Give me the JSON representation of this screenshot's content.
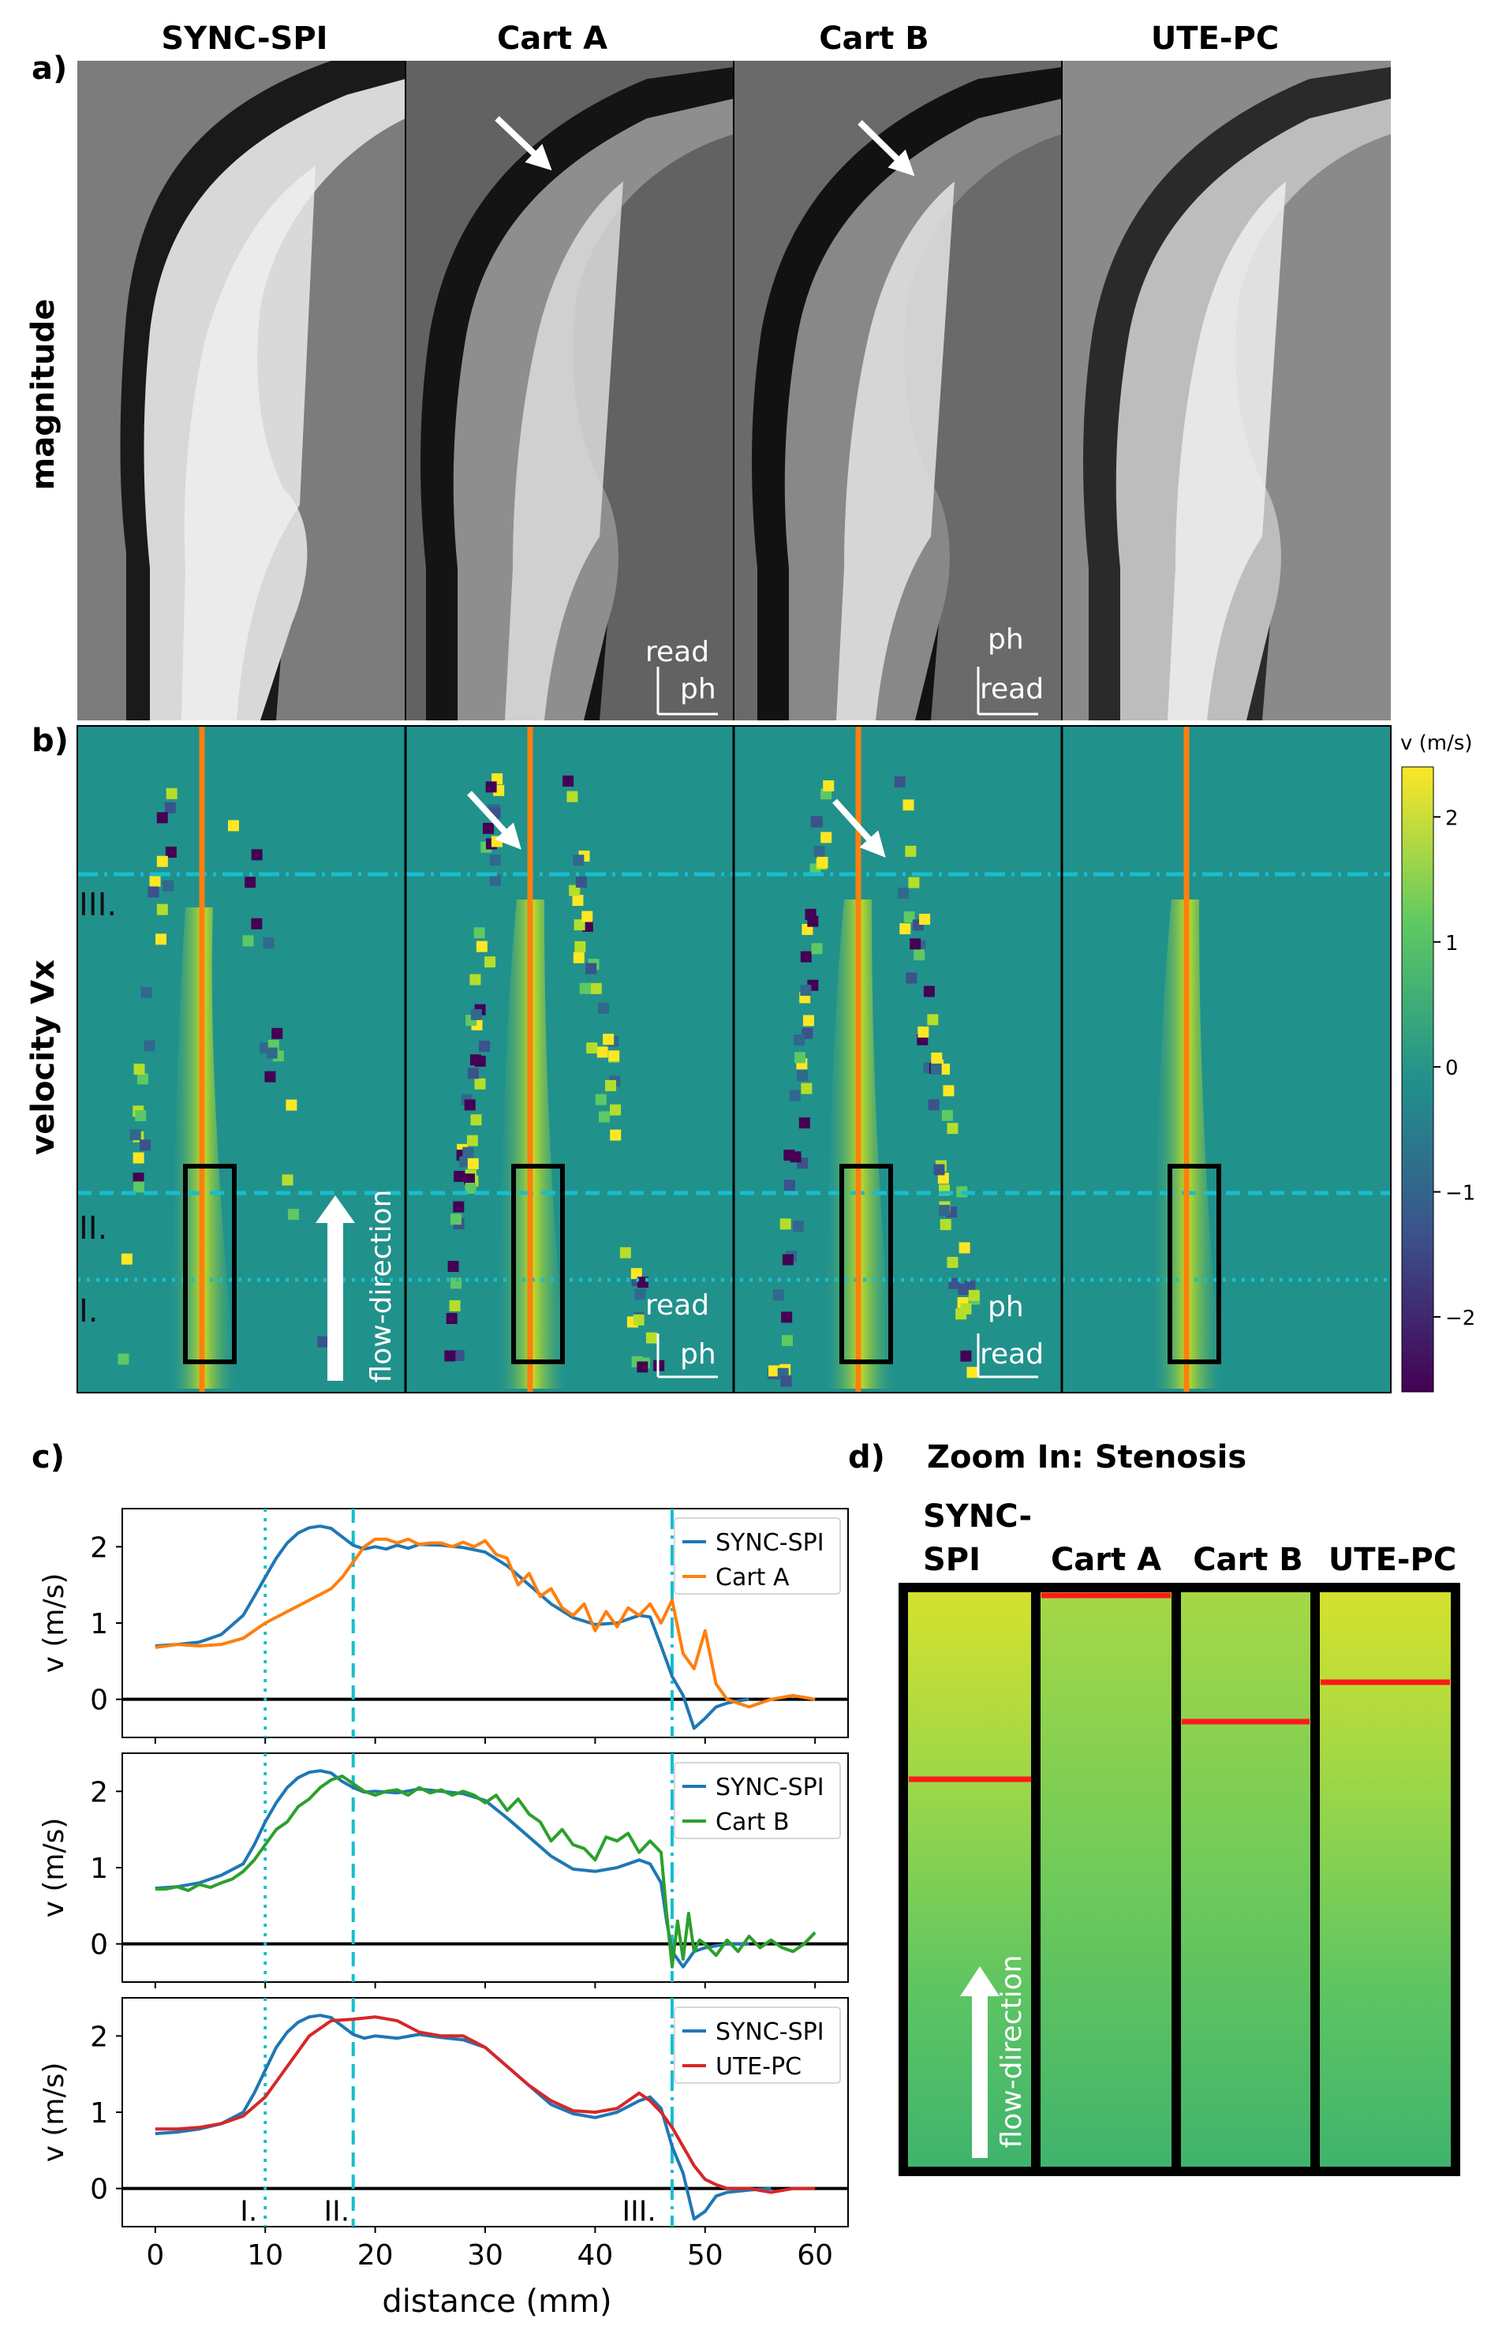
{
  "panel_a": {
    "label": "a)",
    "row_label": "magnitude",
    "columns": [
      "SYNC-SPI",
      "Cart A",
      "Cart B",
      "UTE-PC"
    ],
    "axes_a": {
      "up": "read",
      "right": "ph"
    },
    "axes_b": {
      "up": "ph",
      "right": "read"
    }
  },
  "panel_b": {
    "label": "b)",
    "row_label": "velocity Vx",
    "region_labels": [
      "III.",
      "II.",
      "I."
    ],
    "flow_label": "flow-direction",
    "axes_a": {
      "up": "read",
      "right": "ph"
    },
    "axes_b": {
      "up": "ph",
      "right": "read"
    },
    "colorbar": {
      "title": "v (m/s)",
      "ticks": [
        "2",
        "1",
        "0",
        "−1",
        "−2"
      ],
      "range": [
        -2.6,
        2.4
      ],
      "colors": [
        "#440154",
        "#3b528b",
        "#21918c",
        "#5ec962",
        "#fde725"
      ]
    }
  },
  "panel_c": {
    "label": "c)",
    "ylabel": "v (m/s)",
    "xlabel": "distance (mm)",
    "x_ticks": [
      "0",
      "10",
      "20",
      "30",
      "40",
      "50",
      "60"
    ],
    "y_ticks": [
      "0",
      "1",
      "2"
    ],
    "region_labels": [
      "I.",
      "II.",
      "III."
    ],
    "legends": [
      [
        "SYNC-SPI",
        "Cart A"
      ],
      [
        "SYNC-SPI",
        "Cart B"
      ],
      [
        "SYNC-SPI",
        "UTE-PC"
      ]
    ],
    "colors": {
      "sync": "#1f77b4",
      "carta": "#ff7f0e",
      "cartb": "#2ca02c",
      "ute": "#d62728",
      "markers": "#17becf"
    }
  },
  "panel_d": {
    "label": "d)",
    "title": "Zoom In: Stenosis",
    "columns": [
      "SYNC-SPI",
      "Cart A",
      "Cart B",
      "UTE-PC"
    ],
    "flow_label": "flow-direction"
  },
  "chart_data": {
    "type": "line",
    "xlabel": "distance (mm)",
    "ylabel": "v (m/s)",
    "xlim": [
      -3,
      63
    ],
    "ylim": [
      -0.5,
      2.5
    ],
    "vertical_markers": [
      {
        "label": "I.",
        "x": 10,
        "style": "dotted"
      },
      {
        "label": "II.",
        "x": 18,
        "style": "dashed"
      },
      {
        "label": "III.",
        "x": 47,
        "style": "dash-dot"
      }
    ],
    "subplots": [
      {
        "series": [
          {
            "name": "SYNC-SPI",
            "x": [
              0,
              2,
              4,
              6,
              8,
              9,
              10,
              11,
              12,
              13,
              14,
              15,
              16,
              17,
              18,
              19,
              20,
              21,
              22,
              23,
              24,
              26,
              28,
              30,
              32,
              34,
              36,
              38,
              40,
              42,
              43,
              44,
              45,
              46,
              46.5,
              47,
              48,
              49,
              50,
              51,
              52,
              53,
              54
            ],
            "y": [
              0.7,
              0.72,
              0.75,
              0.85,
              1.1,
              1.35,
              1.6,
              1.85,
              2.05,
              2.18,
              2.25,
              2.27,
              2.24,
              2.13,
              2.02,
              1.97,
              2.0,
              1.97,
              2.02,
              1.98,
              2.03,
              2.02,
              1.99,
              1.93,
              1.75,
              1.5,
              1.25,
              1.07,
              0.98,
              1.0,
              1.05,
              1.1,
              1.08,
              0.7,
              0.5,
              0.3,
              0.05,
              -0.38,
              -0.25,
              -0.1,
              -0.05,
              -0.02,
              0.0
            ]
          },
          {
            "name": "Cart A",
            "x": [
              0,
              2,
              4,
              6,
              8,
              10,
              12,
              14,
              16,
              17,
              18,
              19,
              20,
              21,
              22,
              23,
              24,
              25,
              26,
              27,
              28,
              29,
              30,
              31,
              32,
              33,
              34,
              35,
              36,
              37,
              38,
              39,
              40,
              41,
              42,
              43,
              44,
              45,
              46,
              47,
              48,
              49,
              50,
              51,
              52,
              54,
              56,
              58,
              60
            ],
            "y": [
              0.68,
              0.72,
              0.7,
              0.72,
              0.8,
              1.0,
              1.15,
              1.3,
              1.45,
              1.6,
              1.8,
              2.0,
              2.1,
              2.1,
              2.05,
              2.1,
              2.03,
              2.05,
              2.05,
              2.0,
              2.06,
              2.0,
              2.08,
              1.9,
              1.85,
              1.5,
              1.65,
              1.35,
              1.45,
              1.2,
              1.1,
              1.25,
              0.9,
              1.15,
              0.95,
              1.2,
              1.1,
              1.25,
              1.0,
              1.3,
              0.6,
              0.4,
              0.9,
              0.2,
              0.0,
              -0.1,
              0.0,
              0.05,
              0.0
            ]
          }
        ]
      },
      {
        "series": [
          {
            "name": "SYNC-SPI",
            "x": [
              0,
              2,
              4,
              6,
              8,
              9,
              10,
              11,
              12,
              13,
              14,
              15,
              16,
              17,
              18,
              19,
              20,
              22,
              24,
              26,
              28,
              30,
              32,
              34,
              36,
              38,
              40,
              42,
              44,
              45,
              46,
              46.5,
              47,
              48,
              49,
              50,
              52,
              54
            ],
            "y": [
              0.73,
              0.75,
              0.8,
              0.9,
              1.05,
              1.3,
              1.6,
              1.85,
              2.05,
              2.18,
              2.25,
              2.27,
              2.24,
              2.13,
              2.05,
              1.99,
              2.0,
              1.98,
              2.03,
              2.0,
              1.97,
              1.88,
              1.65,
              1.4,
              1.15,
              0.98,
              0.95,
              1.0,
              1.1,
              1.05,
              0.8,
              0.3,
              -0.1,
              -0.3,
              -0.1,
              -0.05,
              0.0,
              0.0
            ]
          },
          {
            "name": "Cart B",
            "x": [
              0,
              1,
              2,
              3,
              4,
              5,
              6,
              7,
              8,
              9,
              10,
              11,
              12,
              13,
              14,
              15,
              16,
              17,
              18,
              19,
              20,
              21,
              22,
              23,
              24,
              25,
              26,
              27,
              28,
              29,
              30,
              31,
              32,
              33,
              34,
              35,
              36,
              37,
              38,
              39,
              40,
              41,
              42,
              43,
              44,
              45,
              46,
              46.5,
              47,
              47.5,
              48,
              48.5,
              49,
              49.5,
              50,
              51,
              52,
              53,
              54,
              55,
              56,
              57,
              58,
              59,
              60
            ],
            "y": [
              0.72,
              0.72,
              0.75,
              0.7,
              0.78,
              0.74,
              0.8,
              0.85,
              0.95,
              1.1,
              1.3,
              1.5,
              1.6,
              1.8,
              1.9,
              2.05,
              2.15,
              2.2,
              2.1,
              2.0,
              1.95,
              2.0,
              2.02,
              1.95,
              2.05,
              1.98,
              2.02,
              1.95,
              2.0,
              1.95,
              1.85,
              1.95,
              1.75,
              1.9,
              1.7,
              1.6,
              1.35,
              1.5,
              1.3,
              1.25,
              1.1,
              1.4,
              1.35,
              1.45,
              1.2,
              1.35,
              1.2,
              0.4,
              -0.3,
              0.3,
              -0.2,
              0.4,
              -0.1,
              0.05,
              0.0,
              -0.15,
              0.05,
              -0.1,
              0.1,
              -0.05,
              0.05,
              -0.05,
              -0.1,
              0.0,
              0.15
            ]
          }
        ]
      },
      {
        "series": [
          {
            "name": "SYNC-SPI",
            "x": [
              0,
              2,
              4,
              6,
              8,
              9,
              10,
              11,
              12,
              13,
              14,
              15,
              16,
              17,
              18,
              19,
              20,
              22,
              24,
              26,
              28,
              30,
              32,
              34,
              36,
              38,
              40,
              42,
              44,
              45,
              46,
              47,
              48,
              49,
              50,
              51,
              52,
              54,
              56
            ],
            "y": [
              0.72,
              0.74,
              0.78,
              0.85,
              1.0,
              1.25,
              1.55,
              1.85,
              2.05,
              2.18,
              2.25,
              2.27,
              2.24,
              2.13,
              2.02,
              1.97,
              2.0,
              1.97,
              2.02,
              1.98,
              1.95,
              1.85,
              1.6,
              1.35,
              1.1,
              0.98,
              0.93,
              1.0,
              1.15,
              1.2,
              1.05,
              0.55,
              0.2,
              -0.4,
              -0.3,
              -0.1,
              -0.05,
              -0.02,
              0.0
            ]
          },
          {
            "name": "UTE-PC",
            "x": [
              0,
              2,
              4,
              6,
              8,
              10,
              12,
              14,
              16,
              18,
              20,
              22,
              24,
              26,
              28,
              30,
              32,
              34,
              36,
              38,
              40,
              42,
              43,
              44,
              45,
              46,
              47,
              48,
              49,
              50,
              51,
              52,
              54,
              56,
              58,
              60
            ],
            "y": [
              0.78,
              0.78,
              0.8,
              0.85,
              0.95,
              1.2,
              1.6,
              2.0,
              2.2,
              2.22,
              2.25,
              2.2,
              2.05,
              2.0,
              2.0,
              1.85,
              1.6,
              1.35,
              1.15,
              1.02,
              1.0,
              1.05,
              1.15,
              1.25,
              1.15,
              1.0,
              0.8,
              0.55,
              0.3,
              0.12,
              0.05,
              0.0,
              0.0,
              -0.05,
              0.0,
              0.0
            ]
          }
        ]
      }
    ]
  }
}
